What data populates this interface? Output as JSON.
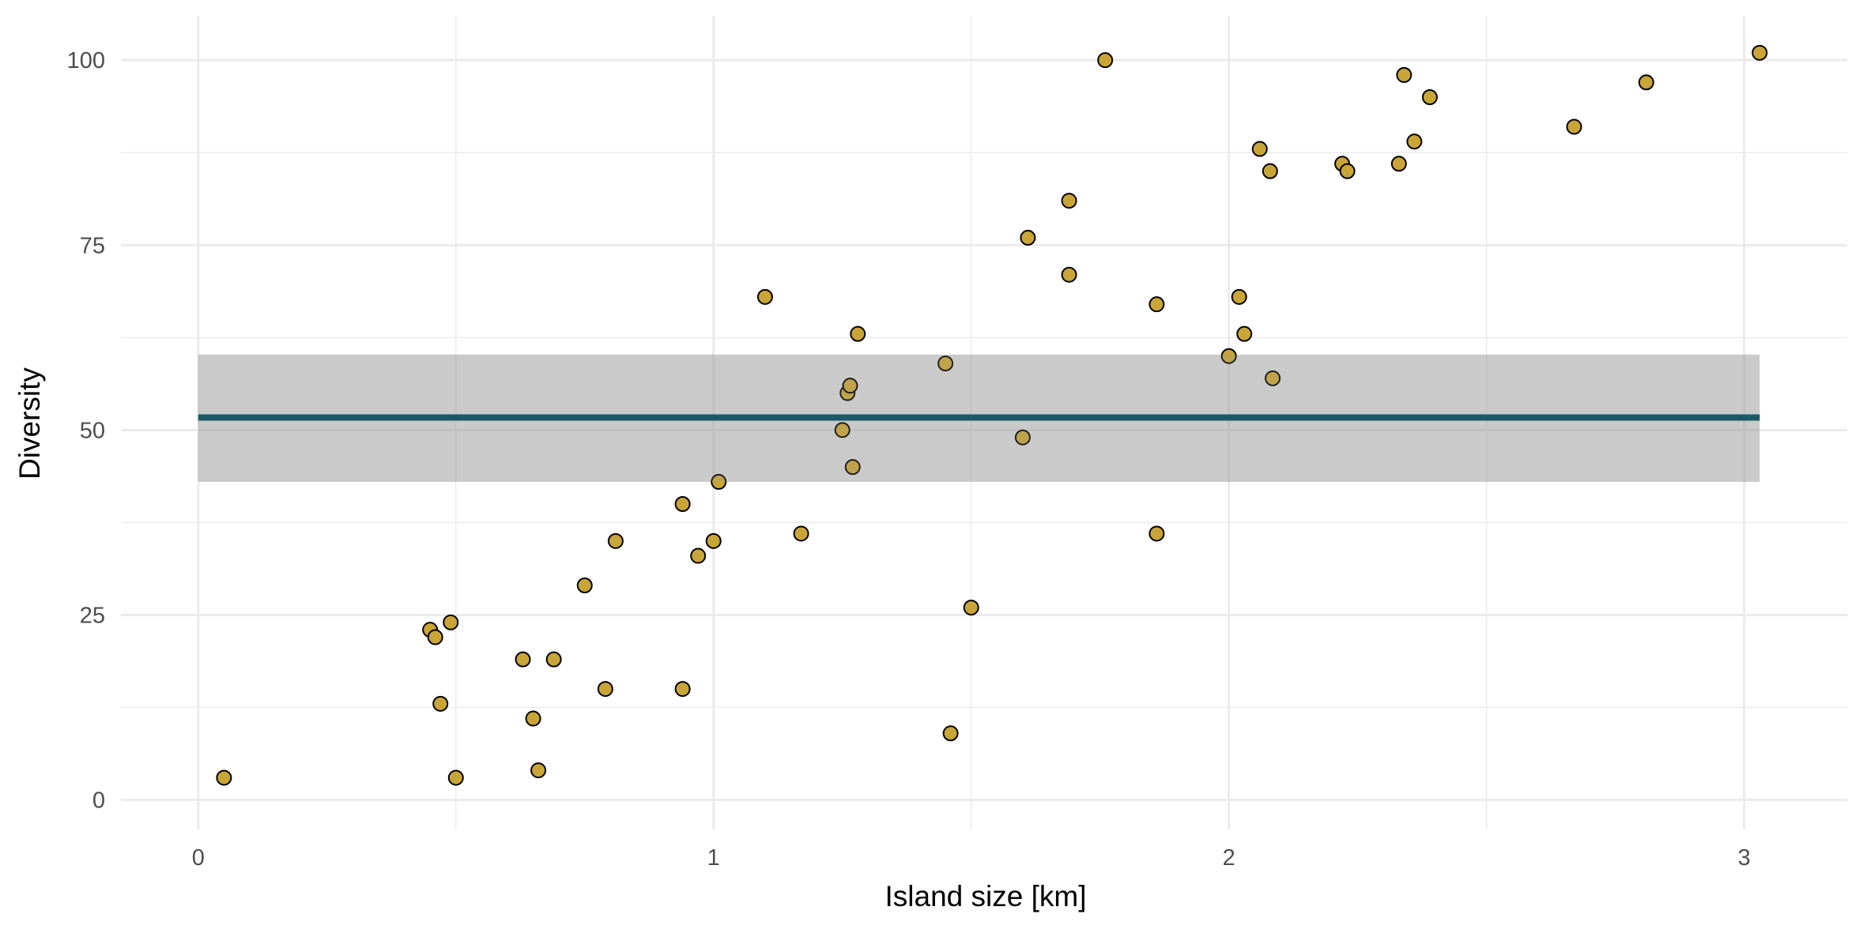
{
  "chart_data": {
    "type": "scatter",
    "xlabel": "Island size [km]",
    "ylabel": "Diversity",
    "xlim": [
      -0.15,
      3.2
    ],
    "ylim": [
      -4,
      106
    ],
    "x_ticks": [
      0,
      1,
      2,
      3
    ],
    "y_ticks": [
      0,
      25,
      50,
      75,
      100
    ],
    "x_tick_labels": [
      "0",
      "1",
      "2",
      "3"
    ],
    "y_tick_labels": [
      "0",
      "25",
      "50",
      "75",
      "100"
    ],
    "grid": true,
    "points": [
      {
        "x": 0.05,
        "y": 3
      },
      {
        "x": 0.45,
        "y": 23
      },
      {
        "x": 0.46,
        "y": 22
      },
      {
        "x": 0.47,
        "y": 13
      },
      {
        "x": 0.49,
        "y": 24
      },
      {
        "x": 0.5,
        "y": 3
      },
      {
        "x": 0.63,
        "y": 19
      },
      {
        "x": 0.65,
        "y": 11
      },
      {
        "x": 0.66,
        "y": 4
      },
      {
        "x": 0.69,
        "y": 19
      },
      {
        "x": 0.75,
        "y": 29
      },
      {
        "x": 0.79,
        "y": 15
      },
      {
        "x": 0.81,
        "y": 35
      },
      {
        "x": 0.94,
        "y": 40
      },
      {
        "x": 0.94,
        "y": 15
      },
      {
        "x": 0.97,
        "y": 33
      },
      {
        "x": 1.0,
        "y": 35
      },
      {
        "x": 1.01,
        "y": 43
      },
      {
        "x": 1.1,
        "y": 68
      },
      {
        "x": 1.17,
        "y": 36
      },
      {
        "x": 1.25,
        "y": 50
      },
      {
        "x": 1.26,
        "y": 55
      },
      {
        "x": 1.265,
        "y": 56
      },
      {
        "x": 1.27,
        "y": 45
      },
      {
        "x": 1.28,
        "y": 63
      },
      {
        "x": 1.45,
        "y": 59
      },
      {
        "x": 1.46,
        "y": 9
      },
      {
        "x": 1.5,
        "y": 26
      },
      {
        "x": 1.6,
        "y": 49
      },
      {
        "x": 1.61,
        "y": 76
      },
      {
        "x": 1.69,
        "y": 71
      },
      {
        "x": 1.69,
        "y": 81
      },
      {
        "x": 1.76,
        "y": 100
      },
      {
        "x": 1.86,
        "y": 67
      },
      {
        "x": 1.86,
        "y": 36
      },
      {
        "x": 2.0,
        "y": 60
      },
      {
        "x": 2.02,
        "y": 68
      },
      {
        "x": 2.03,
        "y": 63
      },
      {
        "x": 2.06,
        "y": 88
      },
      {
        "x": 2.08,
        "y": 85
      },
      {
        "x": 2.085,
        "y": 57
      },
      {
        "x": 2.22,
        "y": 86
      },
      {
        "x": 2.23,
        "y": 85
      },
      {
        "x": 2.33,
        "y": 86
      },
      {
        "x": 2.34,
        "y": 98
      },
      {
        "x": 2.36,
        "y": 89
      },
      {
        "x": 2.39,
        "y": 95
      },
      {
        "x": 2.67,
        "y": 91
      },
      {
        "x": 2.81,
        "y": 97
      },
      {
        "x": 3.03,
        "y": 101
      }
    ],
    "mean_line": {
      "x_start": 0,
      "x_end": 3.03,
      "y": 51.7,
      "ci_lower": 43,
      "ci_upper": 60.2
    },
    "colors": {
      "point_fill": "#C9A537",
      "point_stroke": "#000000",
      "mean_line": "#1A5A68",
      "ribbon": "#999999"
    }
  }
}
